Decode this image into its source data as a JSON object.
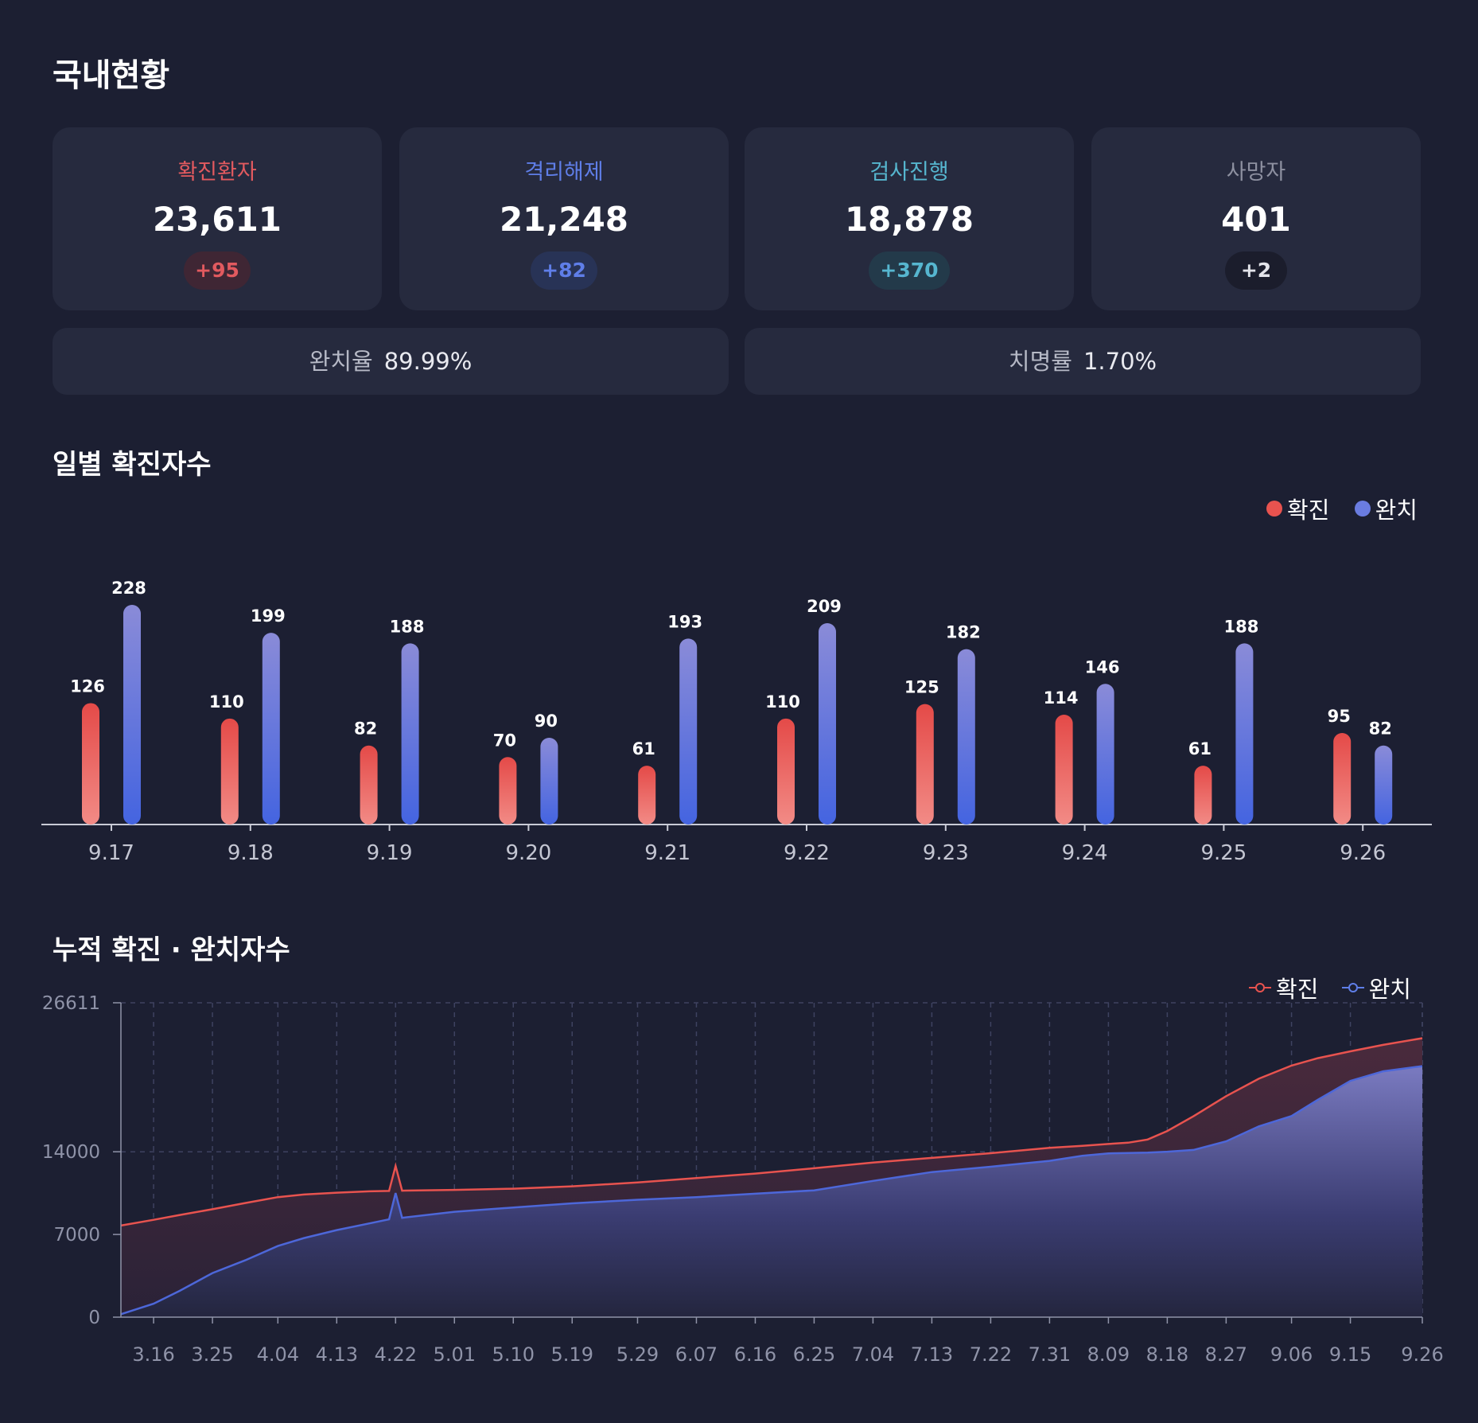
{
  "page_title": "국내현황",
  "stats": [
    {
      "label": "확진환자",
      "value": "23,611",
      "delta": "+95",
      "color": "#e25a5f",
      "badge_bg": "#3f2634"
    },
    {
      "label": "격리해제",
      "value": "21,248",
      "delta": "+82",
      "color": "#5f7ee8",
      "badge_bg": "#283356"
    },
    {
      "label": "검사진행",
      "value": "18,878",
      "delta": "+370",
      "color": "#56b6cf",
      "badge_bg": "#233a4a"
    },
    {
      "label": "사망자",
      "value": "401",
      "delta": "+2",
      "color": "#8d90a0",
      "badge_bg": "#1b1d2c"
    }
  ],
  "rates": [
    {
      "label": "완치율",
      "value": "89.99%"
    },
    {
      "label": "치명률",
      "value": "1.70%"
    }
  ],
  "daily_section_title": "일별 확진자수",
  "cumulative_section_title": "누적 확진 · 완치자수",
  "legend": {
    "confirmed": "확진",
    "recovered": "완치"
  },
  "colors": {
    "confirmed": "#e8534f",
    "recovered": "#4d67d9",
    "background": "#1c1f32",
    "card": "#262a3e"
  },
  "chart_data": [
    {
      "type": "bar",
      "categories": [
        "9.17",
        "9.18",
        "9.19",
        "9.20",
        "9.21",
        "9.22",
        "9.23",
        "9.24",
        "9.25",
        "9.26"
      ],
      "series": [
        {
          "name": "확진",
          "values": [
            126,
            110,
            82,
            70,
            61,
            110,
            125,
            114,
            61,
            95
          ]
        },
        {
          "name": "완치",
          "values": [
            228,
            199,
            188,
            90,
            193,
            209,
            182,
            146,
            188,
            82
          ]
        }
      ],
      "ylim": [
        0,
        228
      ],
      "legend_position": "top-right",
      "data_labels": true
    },
    {
      "type": "area",
      "x_tick_labels": [
        "3.16",
        "3.25",
        "4.04",
        "4.13",
        "4.22",
        "5.01",
        "5.10",
        "5.19",
        "5.29",
        "6.07",
        "6.16",
        "6.25",
        "7.04",
        "7.13",
        "7.22",
        "7.31",
        "8.09",
        "8.18",
        "8.27",
        "9.06",
        "9.15",
        "9.26"
      ],
      "y_ticks": [
        0,
        7000,
        14000,
        26611
      ],
      "ylim": [
        0,
        26611
      ],
      "grid": true,
      "legend_position": "top-right",
      "series": [
        {
          "name": "확진",
          "points": [
            [
              "3.11",
              7755
            ],
            [
              "3.16",
              8236
            ],
            [
              "3.20",
              8652
            ],
            [
              "3.25",
              9137
            ],
            [
              "3.30",
              9661
            ],
            [
              "4.04",
              10156
            ],
            [
              "4.08",
              10384
            ],
            [
              "4.13",
              10537
            ],
            [
              "4.18",
              10653
            ],
            [
              "4.21",
              10683
            ],
            [
              "4.22",
              12800
            ],
            [
              "4.23",
              10708
            ],
            [
              "5.01",
              10774
            ],
            [
              "5.10",
              10874
            ],
            [
              "5.19",
              11078
            ],
            [
              "5.29",
              11402
            ],
            [
              "6.07",
              11776
            ],
            [
              "6.16",
              12155
            ],
            [
              "6.25",
              12602
            ],
            [
              "7.04",
              13091
            ],
            [
              "7.13",
              13479
            ],
            [
              "7.22",
              13879
            ],
            [
              "7.31",
              14336
            ],
            [
              "8.05",
              14499
            ],
            [
              "8.09",
              14660
            ],
            [
              "8.12",
              14770
            ],
            [
              "8.15",
              15039
            ],
            [
              "8.18",
              15761
            ],
            [
              "8.22",
              17002
            ],
            [
              "8.27",
              18706
            ],
            [
              "9.01",
              20182
            ],
            [
              "9.06",
              21296
            ],
            [
              "9.10",
              21919
            ],
            [
              "9.15",
              22504
            ],
            [
              "9.20",
              23045
            ],
            [
              "9.26",
              23611
            ]
          ]
        },
        {
          "name": "완치",
          "points": [
            [
              "3.11",
              247
            ],
            [
              "3.16",
              1137
            ],
            [
              "3.20",
              2233
            ],
            [
              "3.25",
              3730
            ],
            [
              "3.30",
              4811
            ],
            [
              "4.04",
              6021
            ],
            [
              "4.08",
              6694
            ],
            [
              "4.13",
              7368
            ],
            [
              "4.18",
              7937
            ],
            [
              "4.21",
              8277
            ],
            [
              "4.22",
              10500
            ],
            [
              "4.23",
              8411
            ],
            [
              "5.01",
              8922
            ],
            [
              "5.10",
              9283
            ],
            [
              "5.19",
              9632
            ],
            [
              "5.29",
              9938
            ],
            [
              "6.07",
              10162
            ],
            [
              "6.16",
              10446
            ],
            [
              "6.25",
              10730
            ],
            [
              "7.04",
              11537
            ],
            [
              "7.13",
              12282
            ],
            [
              "7.22",
              12733
            ],
            [
              "7.31",
              13233
            ],
            [
              "8.05",
              13654
            ],
            [
              "8.09",
              13863
            ],
            [
              "8.12",
              13901
            ],
            [
              "8.15",
              13934
            ],
            [
              "8.18",
              14006
            ],
            [
              "8.22",
              14157
            ],
            [
              "8.27",
              14882
            ],
            [
              "9.01",
              16146
            ],
            [
              "9.06",
              17023
            ],
            [
              "9.10",
              18393
            ],
            [
              "9.15",
              20001
            ],
            [
              "9.20",
              20809
            ],
            [
              "9.26",
              21248
            ]
          ]
        }
      ]
    }
  ]
}
